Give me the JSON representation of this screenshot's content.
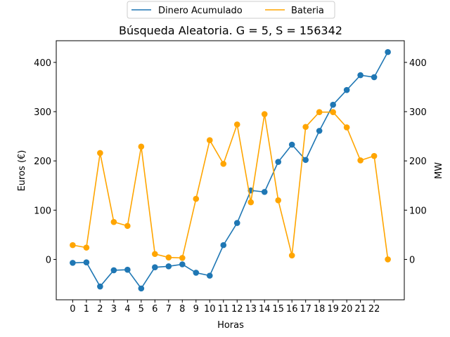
{
  "chart_data": {
    "type": "line",
    "title": "Búsqueda Aleatoria. G = 5, S = 156342",
    "xlabel": "Horas",
    "ylabel": "Euros (€)",
    "y2label": "MW",
    "x": [
      0,
      1,
      2,
      3,
      4,
      5,
      6,
      7,
      8,
      9,
      10,
      11,
      12,
      13,
      14,
      15,
      16,
      17,
      18,
      19,
      20,
      21,
      22,
      23
    ],
    "xticks": [
      0,
      1,
      2,
      3,
      4,
      5,
      6,
      7,
      8,
      9,
      10,
      11,
      12,
      13,
      14,
      15,
      16,
      17,
      18,
      19,
      20,
      21,
      22
    ],
    "xlim": [
      -1.2,
      24.2
    ],
    "ylim": [
      -82,
      444
    ],
    "y2lim": [
      -82,
      444
    ],
    "yticks": [
      0,
      100,
      200,
      300,
      400
    ],
    "legend_position": "top-center outside",
    "grid": false,
    "series": [
      {
        "name": "Dinero Acumulado",
        "axis": "left",
        "color": "#1f77b4",
        "values": [
          -7,
          -6,
          -55,
          -22,
          -21,
          -59,
          -16,
          -14,
          -10,
          -27,
          -33,
          29,
          74,
          140,
          137,
          198,
          233,
          202,
          261,
          314,
          344,
          374,
          370,
          421
        ]
      },
      {
        "name": "Bateria",
        "axis": "right",
        "color": "#ffa500",
        "values": [
          29,
          24,
          216,
          76,
          68,
          229,
          11,
          4,
          3,
          123,
          242,
          194,
          274,
          116,
          295,
          120,
          8,
          269,
          299,
          299,
          268,
          201,
          210,
          0
        ]
      }
    ]
  }
}
